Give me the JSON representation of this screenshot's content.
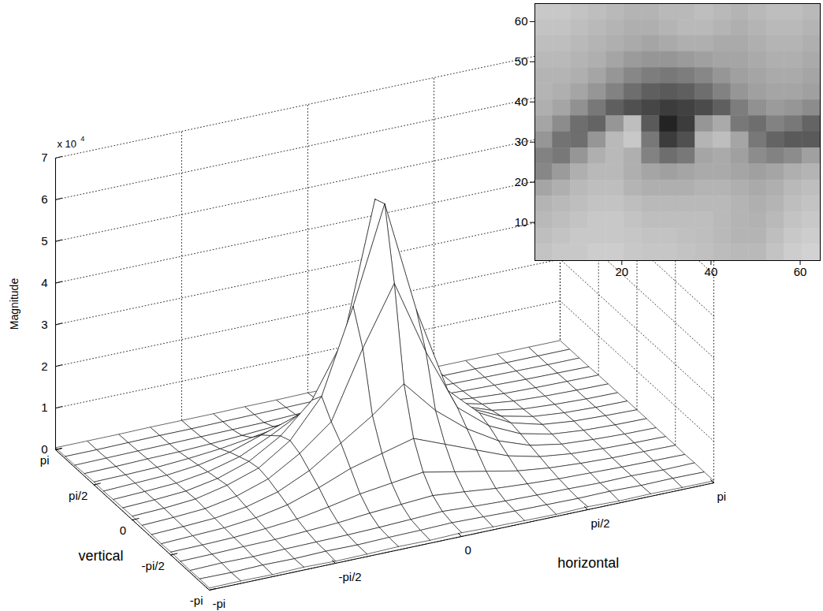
{
  "chart_data": [
    {
      "type": "surface",
      "xlabel": "horizontal",
      "ylabel": "vertical",
      "zlabel": "Magnitude",
      "z_multiplier": "x 10",
      "z_multiplier_exponent": 4,
      "grid": true,
      "color": "#000000",
      "xlim": [
        -3.1416,
        3.1416
      ],
      "ylim": [
        -3.1416,
        3.1416
      ],
      "zlim": [
        0,
        7
      ],
      "xticks": [
        {
          "value": -3.1416,
          "label": "-pi"
        },
        {
          "value": -1.5708,
          "label": "-pi/2"
        },
        0,
        {
          "value": 1.5708,
          "label": "pi/2"
        },
        {
          "value": 3.1416,
          "label": "pi"
        }
      ],
      "yticks": [
        {
          "value": -3.1416,
          "label": "-pi"
        },
        {
          "value": -1.5708,
          "label": "-pi/2"
        },
        0,
        {
          "value": 1.5708,
          "label": "pi/2"
        },
        {
          "value": 3.1416,
          "label": "pi"
        }
      ],
      "zticks": [
        0,
        1,
        2,
        3,
        4,
        5,
        6,
        7
      ],
      "x": [
        -3.1416,
        -2.7489,
        -2.3562,
        -1.9635,
        -1.5708,
        -1.1781,
        -0.7854,
        -0.3927,
        0,
        0.3927,
        0.7854,
        1.1781,
        1.5708,
        1.9635,
        2.3562,
        2.7489,
        3.1416
      ],
      "y": [
        -3.1416,
        -2.7489,
        -2.3562,
        -1.9635,
        -1.5708,
        -1.1781,
        -0.7854,
        -0.3927,
        0,
        0.3927,
        0.7854,
        1.1781,
        1.5708,
        1.9635,
        2.3562,
        2.7489,
        3.1416
      ],
      "z": [
        [
          0.05,
          0.06,
          0.05,
          0.07,
          0.05,
          0.06,
          0.08,
          0.07,
          0.09,
          0.07,
          0.06,
          0.05,
          0.07,
          0.05,
          0.06,
          0.05,
          0.05
        ],
        [
          0.06,
          0.05,
          0.07,
          0.06,
          0.08,
          0.07,
          0.09,
          0.1,
          0.12,
          0.1,
          0.08,
          0.07,
          0.06,
          0.07,
          0.05,
          0.06,
          0.05
        ],
        [
          0.05,
          0.07,
          0.06,
          0.08,
          0.09,
          0.1,
          0.12,
          0.15,
          0.18,
          0.14,
          0.11,
          0.09,
          0.08,
          0.06,
          0.07,
          0.05,
          0.06
        ],
        [
          0.06,
          0.07,
          0.09,
          0.1,
          0.14,
          0.18,
          0.25,
          0.3,
          0.35,
          0.28,
          0.2,
          0.15,
          0.11,
          0.09,
          0.07,
          0.06,
          0.05
        ],
        [
          0.07,
          0.08,
          0.1,
          0.15,
          0.22,
          0.35,
          0.5,
          0.6,
          0.7,
          0.55,
          0.4,
          0.25,
          0.16,
          0.11,
          0.08,
          0.07,
          0.06
        ],
        [
          0.06,
          0.09,
          0.12,
          0.2,
          0.35,
          0.6,
          0.9,
          1.1,
          1.3,
          1.0,
          0.7,
          0.4,
          0.22,
          0.13,
          0.09,
          0.07,
          0.06
        ],
        [
          0.07,
          0.1,
          0.14,
          0.25,
          0.45,
          0.8,
          1.3,
          1.8,
          2.4,
          1.6,
          1.0,
          0.55,
          0.28,
          0.15,
          0.1,
          0.07,
          0.06
        ],
        [
          0.08,
          0.11,
          0.16,
          0.3,
          0.55,
          1.0,
          1.6,
          3.2,
          4.6,
          2.8,
          1.3,
          0.7,
          0.35,
          0.18,
          0.11,
          0.08,
          0.07
        ],
        [
          0.09,
          0.12,
          0.18,
          0.35,
          0.6,
          1.1,
          2.0,
          4.0,
          6.3,
          3.6,
          1.5,
          0.8,
          0.4,
          0.2,
          0.12,
          0.09,
          0.07
        ],
        [
          0.08,
          0.11,
          0.16,
          0.3,
          0.55,
          1.0,
          1.7,
          3.0,
          6.2,
          2.9,
          1.4,
          0.7,
          0.35,
          0.18,
          0.11,
          0.08,
          0.07
        ],
        [
          0.07,
          0.1,
          0.14,
          0.25,
          0.45,
          0.8,
          1.2,
          1.7,
          2.5,
          1.6,
          1.0,
          0.55,
          0.28,
          0.15,
          0.1,
          0.07,
          0.06
        ],
        [
          0.06,
          0.09,
          0.12,
          0.2,
          0.35,
          0.6,
          0.85,
          1.0,
          1.2,
          0.95,
          0.65,
          0.4,
          0.22,
          0.13,
          0.09,
          0.07,
          0.06
        ],
        [
          0.07,
          0.08,
          0.1,
          0.15,
          0.22,
          0.33,
          0.45,
          0.55,
          0.65,
          0.5,
          0.38,
          0.24,
          0.15,
          0.1,
          0.08,
          0.07,
          0.06
        ],
        [
          0.06,
          0.07,
          0.09,
          0.1,
          0.13,
          0.17,
          0.22,
          0.28,
          0.32,
          0.26,
          0.19,
          0.14,
          0.11,
          0.09,
          0.07,
          0.06,
          0.05
        ],
        [
          0.05,
          0.06,
          0.07,
          0.08,
          0.09,
          0.1,
          0.11,
          0.14,
          0.16,
          0.13,
          0.1,
          0.09,
          0.08,
          0.07,
          0.06,
          0.05,
          0.05
        ],
        [
          0.05,
          0.05,
          0.06,
          0.07,
          0.07,
          0.08,
          0.09,
          0.1,
          0.11,
          0.09,
          0.08,
          0.07,
          0.06,
          0.06,
          0.05,
          0.05,
          0.05
        ],
        [
          0.05,
          0.05,
          0.05,
          0.06,
          0.06,
          0.06,
          0.07,
          0.07,
          0.08,
          0.07,
          0.06,
          0.06,
          0.05,
          0.05,
          0.05,
          0.05,
          0.05
        ]
      ]
    },
    {
      "type": "image",
      "xlim": [
        0.5,
        64.5
      ],
      "ylim": [
        0.5,
        64.5
      ],
      "xticks": [
        20,
        40,
        60
      ],
      "yticks": [
        10,
        20,
        30,
        40,
        50,
        60
      ],
      "color_range": [
        0,
        255
      ],
      "pixels": [
        [
          200,
          200,
          195,
          190,
          185,
          180,
          180,
          185,
          185,
          190,
          185,
          180,
          185,
          190,
          190,
          185
        ],
        [
          195,
          195,
          190,
          185,
          180,
          175,
          175,
          180,
          185,
          185,
          180,
          175,
          180,
          185,
          185,
          180
        ],
        [
          190,
          190,
          185,
          180,
          175,
          170,
          165,
          170,
          175,
          175,
          170,
          170,
          175,
          180,
          180,
          175
        ],
        [
          185,
          185,
          180,
          175,
          165,
          155,
          150,
          150,
          155,
          160,
          165,
          165,
          170,
          175,
          175,
          170
        ],
        [
          180,
          180,
          175,
          165,
          150,
          135,
          125,
          120,
          125,
          135,
          150,
          160,
          165,
          170,
          170,
          165
        ],
        [
          180,
          175,
          165,
          150,
          130,
          110,
          95,
          90,
          95,
          110,
          130,
          150,
          160,
          165,
          165,
          160
        ],
        [
          175,
          165,
          145,
          120,
          95,
          80,
          70,
          60,
          65,
          75,
          95,
          125,
          145,
          155,
          150,
          140
        ],
        [
          165,
          140,
          110,
          100,
          150,
          190,
          90,
          35,
          60,
          150,
          170,
          120,
          110,
          130,
          120,
          100
        ],
        [
          150,
          115,
          110,
          150,
          185,
          200,
          120,
          60,
          80,
          180,
          190,
          165,
          120,
          100,
          90,
          90
        ],
        [
          130,
          120,
          150,
          175,
          185,
          175,
          130,
          110,
          120,
          165,
          170,
          160,
          140,
          130,
          140,
          160
        ],
        [
          135,
          155,
          175,
          185,
          185,
          175,
          165,
          160,
          165,
          170,
          170,
          165,
          160,
          165,
          175,
          180
        ],
        [
          165,
          175,
          185,
          190,
          190,
          180,
          175,
          175,
          175,
          180,
          180,
          175,
          170,
          175,
          185,
          190
        ],
        [
          180,
          185,
          190,
          195,
          195,
          190,
          185,
          185,
          185,
          185,
          185,
          180,
          175,
          180,
          190,
          195
        ],
        [
          185,
          190,
          195,
          200,
          200,
          195,
          190,
          190,
          190,
          190,
          185,
          180,
          178,
          185,
          195,
          200
        ],
        [
          190,
          195,
          200,
          200,
          200,
          198,
          195,
          195,
          192,
          190,
          185,
          180,
          180,
          190,
          200,
          205
        ],
        [
          195,
          200,
          200,
          205,
          205,
          200,
          198,
          198,
          195,
          192,
          188,
          185,
          185,
          195,
          205,
          210
        ]
      ]
    }
  ]
}
